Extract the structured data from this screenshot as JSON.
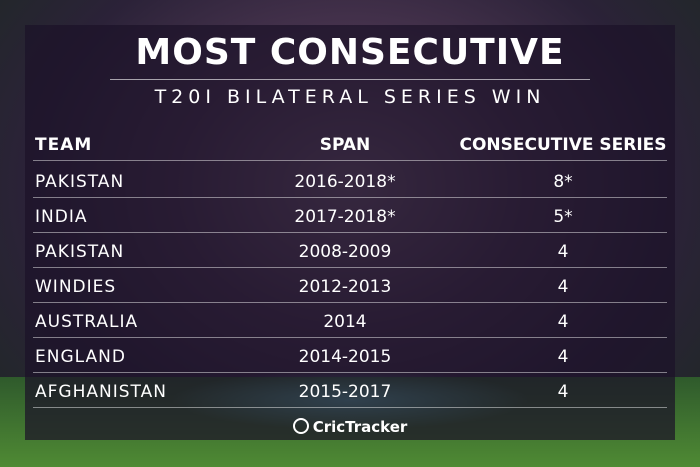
{
  "header": {
    "title": "MOST CONSECUTIVE",
    "subtitle": "T20I BILATERAL SERIES WIN"
  },
  "table": {
    "columns": [
      "TEAM",
      "SPAN",
      "CONSECUTIVE SERIES"
    ],
    "rows": [
      [
        "PAKISTAN",
        "2016-2018*",
        "8*"
      ],
      [
        "INDIA",
        "2017-2018*",
        "5*"
      ],
      [
        "PAKISTAN",
        "2008-2009",
        "4"
      ],
      [
        "WINDIES",
        "2012-2013",
        "4"
      ],
      [
        "AUSTRALIA",
        "2014",
        "4"
      ],
      [
        "ENGLAND",
        "2014-2015",
        "4"
      ],
      [
        "AFGHANISTAN",
        "2015-2017",
        "4"
      ]
    ]
  },
  "footer": {
    "brand": "CricTracker"
  }
}
